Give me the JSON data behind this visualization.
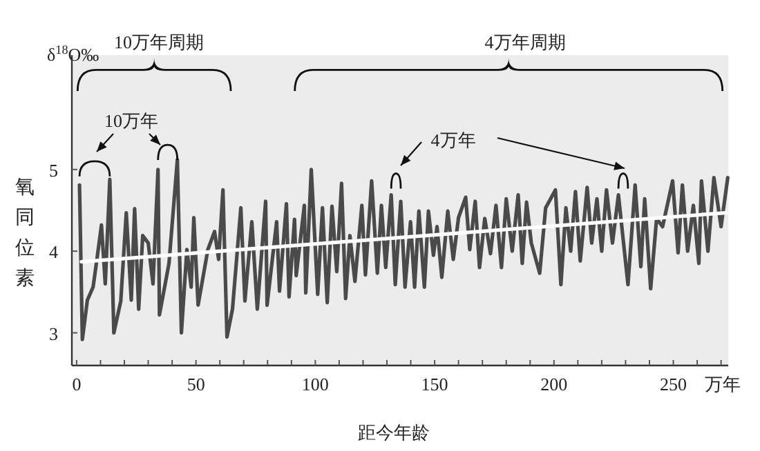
{
  "chart_data": {
    "type": "line",
    "xlabel": "距今年龄",
    "ylabel": "氧同位素",
    "annotations": [
      "δ$^{18}$O‰",
      "万年",
      "10万年周期",
      "4万年周期",
      "10万年",
      "4万年"
    ],
    "xlim": [
      -2,
      273
    ],
    "ylim": [
      2.6,
      6.4
    ],
    "xticks": [
      0,
      {
        "value": 10,
        "label": null
      },
      {
        "value": 20,
        "label": null
      },
      {
        "value": 30,
        "label": null
      },
      {
        "value": 40,
        "label": null
      },
      50,
      {
        "value": 60,
        "label": null
      },
      {
        "value": 70,
        "label": null
      },
      {
        "value": 80,
        "label": null
      },
      {
        "value": 90,
        "label": null
      },
      100,
      {
        "value": 110,
        "label": null
      },
      {
        "value": 120,
        "label": null
      },
      {
        "value": 130,
        "label": null
      },
      {
        "value": 140,
        "label": null
      },
      150,
      {
        "value": 160,
        "label": null
      },
      {
        "value": 170,
        "label": null
      },
      {
        "value": 180,
        "label": null
      },
      {
        "value": 190,
        "label": null
      },
      200,
      {
        "value": 210,
        "label": null
      },
      {
        "value": 220,
        "label": null
      },
      {
        "value": 230,
        "label": null
      },
      {
        "value": 240,
        "label": null
      },
      250,
      {
        "value": 260,
        "label": null
      },
      {
        "value": 270,
        "label": null
      }
    ],
    "yticks": [
      3,
      4,
      5
    ],
    "grid": false,
    "marker": "none",
    "line_style": "solid",
    "series": [
      {
        "color": "#4a4a4a",
        "x": [
          1.2,
          2.4,
          4.5,
          6.9,
          8.5,
          10.4,
          12,
          13.9,
          15.6,
          18.5,
          20.8,
          22.9,
          24.3,
          26,
          27.7,
          30,
          32,
          34.1,
          34.7,
          38.7,
          42.2,
          43.9,
          46.2,
          48,
          49.1,
          50.9,
          55,
          57.8,
          59.5,
          61.3,
          63,
          65.3,
          68.8,
          70.5,
          73.4,
          75.7,
          79.2,
          79.8,
          83.8,
          85,
          87.9,
          89,
          91.3,
          92,
          95.4,
          96,
          98.3,
          101,
          103,
          105,
          107,
          109,
          111,
          112.7,
          114.5,
          116.6,
          119.5,
          121,
          123.6,
          126,
          127.7,
          129.5,
          131.8,
          133.5,
          135.8,
          137.6,
          139.9,
          141.6,
          143.4,
          145.7,
          147.4,
          149.5,
          151,
          153,
          155.5,
          157.8,
          160,
          163,
          164.7,
          167,
          168.8,
          171,
          173.4,
          175.7,
          178,
          180,
          182.5,
          185,
          186.7,
          188.5,
          190.5,
          194,
          196.5,
          200.6,
          202.9,
          205,
          207,
          209,
          211,
          213.9,
          215.8,
          218,
          220,
          222,
          224.5,
          227,
          231,
          234,
          236.4,
          238,
          240.5,
          243,
          245.5,
          249.7,
          252,
          253.8,
          256,
          258.4,
          260.7,
          261.8,
          264.5,
          267,
          270,
          272.8
        ],
        "values": [
          4.81,
          2.92,
          3.4,
          3.56,
          3.9,
          4.32,
          3.6,
          4.88,
          3.0,
          3.39,
          4.47,
          3.4,
          4.52,
          3.29,
          4.19,
          4.1,
          3.6,
          5.0,
          3.22,
          3.85,
          5.12,
          3.0,
          4.02,
          3.56,
          4.41,
          3.34,
          4.02,
          4.24,
          3.9,
          4.75,
          2.95,
          3.29,
          4.53,
          3.39,
          4.36,
          3.29,
          4.61,
          3.34,
          4.36,
          3.51,
          4.58,
          3.44,
          4.39,
          3.7,
          4.56,
          3.49,
          5.0,
          3.47,
          4.53,
          3.37,
          4.55,
          3.75,
          4.83,
          3.42,
          4.19,
          3.63,
          4.56,
          3.71,
          4.86,
          3.73,
          4.56,
          3.8,
          4.69,
          3.59,
          4.61,
          3.56,
          4.36,
          3.56,
          4.49,
          3.56,
          4.49,
          3.95,
          4.3,
          3.68,
          4.49,
          3.9,
          4.41,
          4.66,
          4.02,
          4.61,
          3.8,
          4.4,
          3.97,
          4.56,
          3.8,
          4.64,
          4.0,
          4.69,
          3.85,
          4.6,
          4.1,
          3.73,
          4.53,
          4.75,
          3.59,
          4.53,
          4.0,
          4.73,
          3.88,
          4.78,
          4.1,
          4.64,
          4.0,
          4.75,
          4.1,
          4.69,
          3.59,
          4.81,
          3.81,
          4.64,
          3.54,
          4.4,
          4.3,
          4.86,
          3.98,
          4.81,
          4.0,
          4.56,
          3.85,
          4.86,
          4.0,
          4.9,
          4.3,
          4.9
        ]
      },
      {
        "color": "#ffffff",
        "x": [
          2,
          272
        ],
        "values": [
          3.87,
          4.47
        ]
      }
    ]
  }
}
